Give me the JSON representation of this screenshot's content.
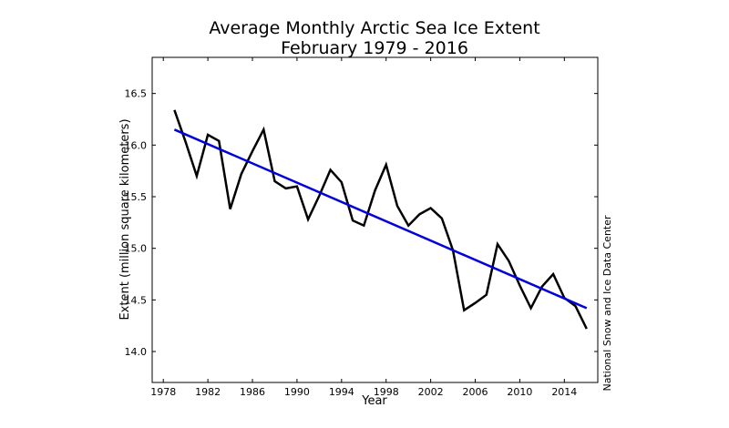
{
  "chart_data": {
    "type": "line",
    "title": "Average Monthly Arctic Sea Ice Extent",
    "subtitle": "February 1979 - 2016",
    "xlabel": "Year",
    "ylabel": "Extent (million square kilometers)",
    "credit": "National Snow and Ice Data Center",
    "xlim": [
      1977,
      2017
    ],
    "ylim": [
      13.7,
      16.85
    ],
    "xticks": [
      1978,
      1982,
      1986,
      1990,
      1994,
      1998,
      2002,
      2006,
      2010,
      2014
    ],
    "xtick_labels": [
      "1978",
      "1982",
      "1986",
      "1990",
      "1994",
      "1998",
      "2002",
      "2006",
      "2010",
      "2014"
    ],
    "yticks": [
      14.0,
      14.5,
      15.0,
      15.5,
      16.0,
      16.5
    ],
    "ytick_labels": [
      "14.0",
      "14.5",
      "15.0",
      "15.5",
      "16.0",
      "16.5"
    ],
    "grid": false,
    "series": [
      {
        "color": "#000000",
        "x": [
          1979,
          1980,
          1981,
          1982,
          1983,
          1984,
          1985,
          1986,
          1987,
          1988,
          1989,
          1990,
          1991,
          1992,
          1993,
          1994,
          1995,
          1996,
          1997,
          1998,
          1999,
          2000,
          2001,
          2002,
          2003,
          2004,
          2005,
          2006,
          2007,
          2008,
          2009,
          2010,
          2011,
          2012,
          2013,
          2014,
          2015,
          2016
        ],
        "values": [
          16.34,
          16.03,
          15.7,
          16.1,
          16.04,
          15.38,
          15.72,
          15.94,
          16.15,
          15.65,
          15.58,
          15.6,
          15.28,
          15.51,
          15.76,
          15.64,
          15.27,
          15.22,
          15.56,
          15.81,
          15.41,
          15.22,
          15.33,
          15.39,
          15.29,
          14.98,
          14.4,
          14.47,
          14.55,
          15.04,
          14.88,
          14.64,
          14.42,
          14.63,
          14.75,
          14.52,
          14.44,
          14.22
        ]
      },
      {
        "color": "#0000dd",
        "x": [
          1979,
          2016
        ],
        "values": [
          16.15,
          14.42
        ]
      }
    ]
  }
}
